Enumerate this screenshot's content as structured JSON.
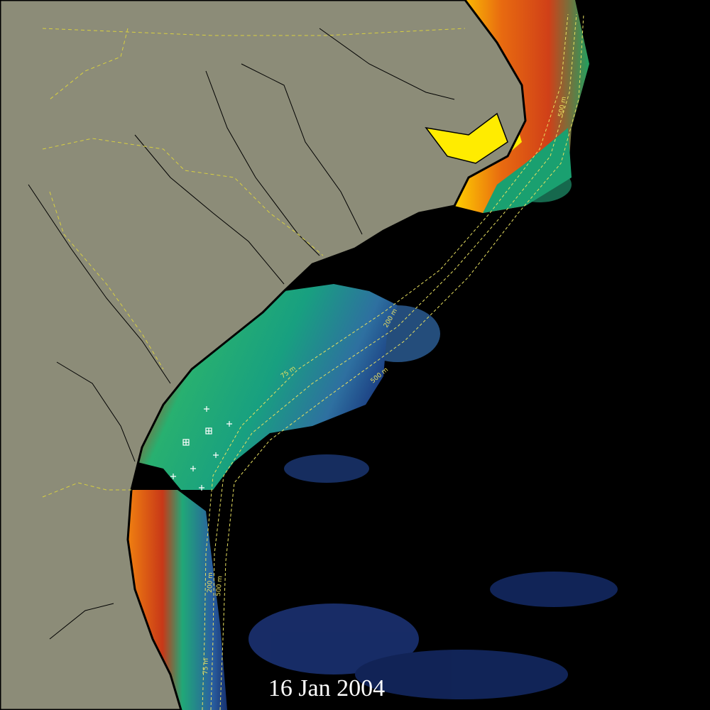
{
  "date_label": "16 Jan 2004",
  "contour_labels": [
    "75 m",
    "200 m",
    "500 m",
    "500 m",
    "200 m",
    "500 m",
    "75 m"
  ]
}
